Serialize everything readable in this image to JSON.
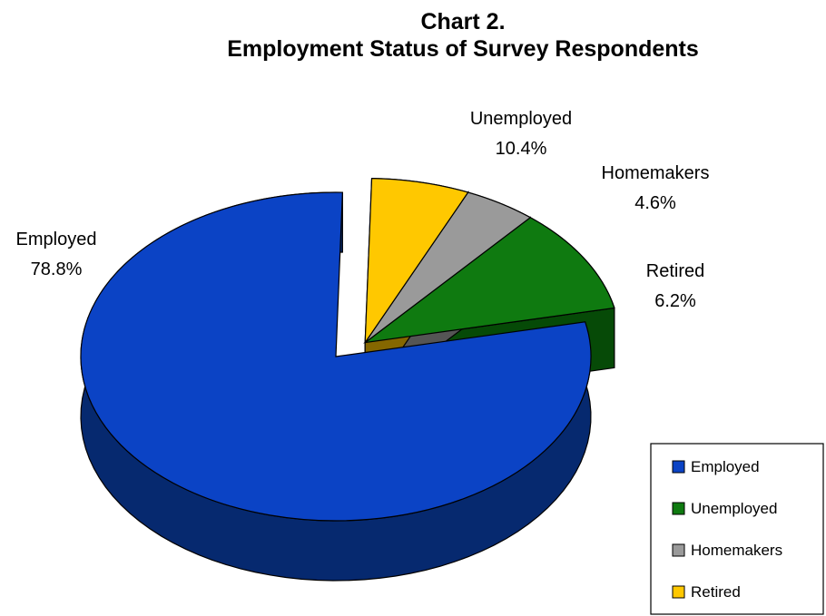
{
  "chart_data": {
    "type": "pie",
    "title": "Chart 2.",
    "subtitle": "Employment Status of Survey Respondents",
    "slices": [
      {
        "name": "Employed",
        "value": 78.8,
        "label": "78.8%",
        "color": "#0B43C5",
        "side_color": "#06296F",
        "exploded": false
      },
      {
        "name": "Unemployed",
        "value": 10.4,
        "label": "10.4%",
        "color": "#0F7A10",
        "side_color": "#064A07",
        "exploded": true
      },
      {
        "name": "Homemakers",
        "value": 4.6,
        "label": "4.6%",
        "color": "#9A9A9A",
        "side_color": "#555555",
        "exploded": true
      },
      {
        "name": "Retired",
        "value": 6.2,
        "label": "6.2%",
        "color": "#FFC800",
        "side_color": "#856700",
        "exploded": true
      }
    ],
    "legend": {
      "position": "bottom-right",
      "entries": [
        "Employed",
        "Unemployed",
        "Homemakers",
        "Retired"
      ]
    }
  }
}
